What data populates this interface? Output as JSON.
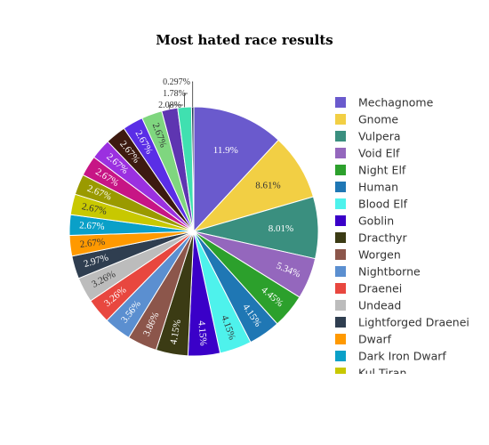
{
  "chart_data": {
    "type": "pie",
    "title": "Most hated race results",
    "slices": [
      {
        "label": "Mechagnome",
        "value": 11.9,
        "text": "11.9%",
        "color": "#6a5acd"
      },
      {
        "label": "Gnome",
        "value": 8.61,
        "text": "8.61%",
        "color": "#f2cf44"
      },
      {
        "label": "Vulpera",
        "value": 8.01,
        "text": "8.01%",
        "color": "#3a8f7f"
      },
      {
        "label": "Void Elf",
        "value": 5.34,
        "text": "5.34%",
        "color": "#9467bd"
      },
      {
        "label": "Night Elf",
        "value": 4.45,
        "text": "4.45%",
        "color": "#2ca02c"
      },
      {
        "label": "Human",
        "value": 4.15,
        "text": "4.15%",
        "color": "#1f77b4"
      },
      {
        "label": "Blood Elf",
        "value": 4.15,
        "text": "4.15%",
        "color": "#4ef2ec"
      },
      {
        "label": "Goblin",
        "value": 4.15,
        "text": "4.15%",
        "color": "#3a00c8"
      },
      {
        "label": "Dracthyr",
        "value": 4.15,
        "text": "4.15%",
        "color": "#3b3b14"
      },
      {
        "label": "Worgen",
        "value": 3.86,
        "text": "3.86%",
        "color": "#8c564b"
      },
      {
        "label": "Nightborne",
        "value": 3.56,
        "text": "3.56%",
        "color": "#5b8fd0"
      },
      {
        "label": "Draenei",
        "value": 3.26,
        "text": "3.26%",
        "color": "#e8473f"
      },
      {
        "label": "Undead",
        "value": 3.26,
        "text": "3.26%",
        "color": "#bcbcbc"
      },
      {
        "label": "Lightforged Draenei",
        "value": 2.97,
        "text": "2.97%",
        "color": "#2f3e50"
      },
      {
        "label": "Dwarf",
        "value": 2.67,
        "text": "2.67%",
        "color": "#ff9900"
      },
      {
        "label": "Dark Iron Dwarf",
        "value": 2.67,
        "text": "2.67%",
        "color": "#0aa0c8"
      },
      {
        "label": "Kul Tiran",
        "value": 2.67,
        "text": "2.67%",
        "color": "#c8c800"
      },
      {
        "label": "",
        "value": 2.67,
        "text": "2.67%",
        "color": "#9a9a00"
      },
      {
        "label": "",
        "value": 2.67,
        "text": "2.67%",
        "color": "#c71585"
      },
      {
        "label": "",
        "value": 2.67,
        "text": "2.67%",
        "color": "#9b30e0"
      },
      {
        "label": "",
        "value": 2.67,
        "text": "2.67%",
        "color": "#3d1a10"
      },
      {
        "label": "",
        "value": 2.67,
        "text": "2.67%",
        "color": "#5a2ee6"
      },
      {
        "label": "",
        "value": 2.67,
        "text": "2.67%",
        "color": "#7fd67f"
      },
      {
        "label": "",
        "value": 2.08,
        "text": "2.08%",
        "color": "#5e35b1"
      },
      {
        "label": "",
        "value": 1.78,
        "text": "1.78%",
        "color": "#40e0b0"
      },
      {
        "label": "",
        "value": 0.297,
        "text": "0.297%",
        "color": "#223355"
      }
    ],
    "legend_placement": "right",
    "legend_visible_count": 17
  }
}
